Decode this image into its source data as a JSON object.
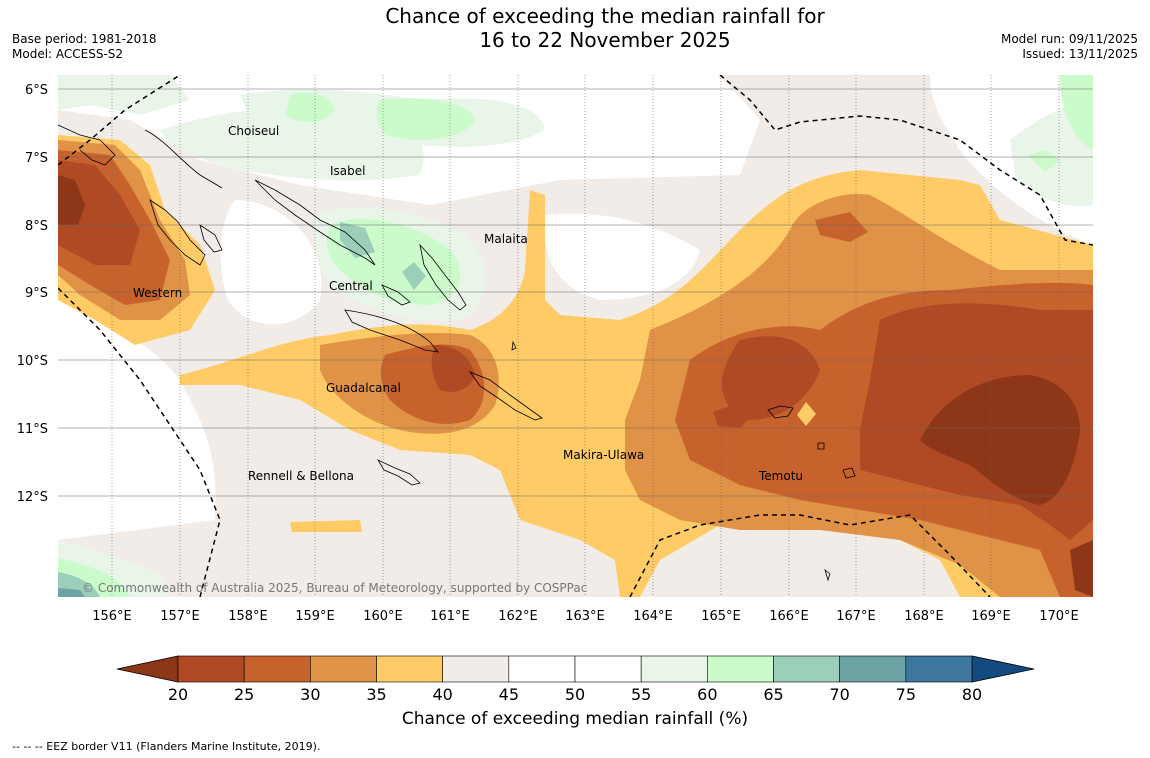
{
  "title": {
    "line1": "Chance of exceeding the median rainfall for",
    "line2": "16 to 22 November 2025"
  },
  "meta": {
    "base_period": "Base period: 1981-2018",
    "model": "Model: ACCESS-S2",
    "model_run": "Model run: 09/11/2025",
    "issued": "Issued: 13/11/2025"
  },
  "map": {
    "lat_labels": [
      "6°S",
      "7°S",
      "8°S",
      "9°S",
      "10°S",
      "11°S",
      "12°S"
    ],
    "lon_labels": [
      "156°E",
      "157°E",
      "158°E",
      "159°E",
      "160°E",
      "161°E",
      "162°E",
      "163°E",
      "164°E",
      "165°E",
      "166°E",
      "167°E",
      "168°E",
      "169°E",
      "170°E"
    ],
    "regions": [
      "Choiseul",
      "Isabel",
      "Malaita",
      "Western",
      "Central",
      "Guadalcanal",
      "Makira-Ulawa",
      "Rennell & Bellona",
      "Temotu"
    ],
    "copyright": "© Commonwealth of Australia 2025, Bureau of Meteorology, supported by COSPPac"
  },
  "colorbar": {
    "ticks": [
      "20",
      "25",
      "30",
      "35",
      "40",
      "45",
      "50",
      "55",
      "60",
      "65",
      "70",
      "75",
      "80"
    ],
    "colors": [
      "#b04a25",
      "#c8622d",
      "#e09346",
      "#fecb66",
      "#f1ece7",
      "#ffffff",
      "#ffffff",
      "#eaf5ea",
      "#cbfbcb",
      "#9ccfba",
      "#6da3a5",
      "#3d769e"
    ],
    "low_color": "#8e3618",
    "high_color": "#134b80",
    "label": "Chance of exceeding median rainfall (%)"
  },
  "footnote": "--  --  -- EEZ border V11 (Flanders Marine Institute, 2019)."
}
